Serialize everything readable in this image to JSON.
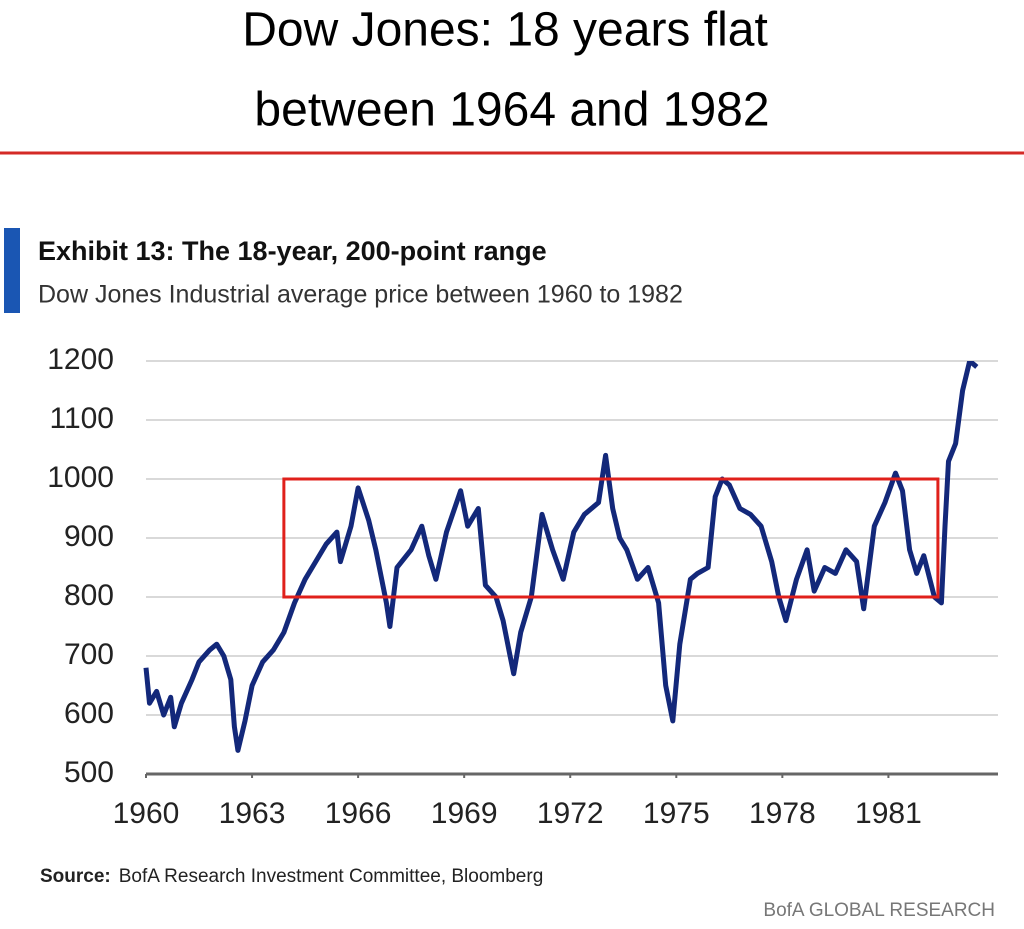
{
  "headline": [
    "Dow Jones: 18 years flat",
    "between 1964 and 1982"
  ],
  "chart_data": {
    "type": "line",
    "title": "Exhibit 13: The 18-year, 200-point range",
    "subtitle": "Dow Jones Industrial average price between 1960 to 1982",
    "x": [
      1960.0,
      1960.1,
      1960.3,
      1960.5,
      1960.7,
      1960.8,
      1961.0,
      1961.3,
      1961.5,
      1961.8,
      1962.0,
      1962.2,
      1962.4,
      1962.5,
      1962.6,
      1962.8,
      1963.0,
      1963.3,
      1963.6,
      1963.9,
      1964.2,
      1964.5,
      1964.8,
      1965.1,
      1965.4,
      1965.5,
      1965.8,
      1966.0,
      1966.3,
      1966.5,
      1966.8,
      1966.9,
      1967.1,
      1967.5,
      1967.8,
      1968.0,
      1968.2,
      1968.5,
      1968.9,
      1969.1,
      1969.4,
      1969.6,
      1969.9,
      1970.1,
      1970.3,
      1970.4,
      1970.6,
      1970.9,
      1971.2,
      1971.5,
      1971.8,
      1972.1,
      1972.4,
      1972.8,
      1973.0,
      1973.2,
      1973.4,
      1973.6,
      1973.9,
      1974.2,
      1974.5,
      1974.7,
      1974.9,
      1975.1,
      1975.4,
      1975.6,
      1975.9,
      1976.1,
      1976.3,
      1976.5,
      1976.8,
      1977.1,
      1977.4,
      1977.7,
      1977.9,
      1978.1,
      1978.4,
      1978.7,
      1978.9,
      1979.2,
      1979.5,
      1979.8,
      1980.1,
      1980.3,
      1980.6,
      1980.9,
      1981.2,
      1981.4,
      1981.6,
      1981.8,
      1982.0,
      1982.3,
      1982.5,
      1982.6,
      1982.7,
      1982.9,
      1983.1,
      1983.3,
      1983.5
    ],
    "series": [
      {
        "name": "Dow Jones Industrial Average",
        "color": "#13287a",
        "values": [
          680,
          620,
          640,
          600,
          630,
          580,
          620,
          660,
          690,
          710,
          720,
          700,
          660,
          580,
          540,
          590,
          650,
          690,
          710,
          740,
          790,
          830,
          860,
          890,
          910,
          860,
          920,
          985,
          930,
          880,
          790,
          750,
          850,
          880,
          920,
          870,
          830,
          910,
          980,
          920,
          950,
          820,
          800,
          760,
          700,
          670,
          740,
          800,
          940,
          880,
          830,
          910,
          940,
          960,
          1040,
          950,
          900,
          880,
          830,
          850,
          790,
          650,
          590,
          720,
          830,
          840,
          850,
          970,
          1000,
          990,
          950,
          940,
          920,
          860,
          800,
          760,
          830,
          880,
          810,
          850,
          840,
          880,
          860,
          780,
          920,
          960,
          1010,
          980,
          880,
          840,
          870,
          800,
          790,
          920,
          1030,
          1060,
          1150,
          1200,
          1190
        ]
      }
    ],
    "xlim": [
      1960,
      1984.1
    ],
    "ylim": [
      500,
      1200
    ],
    "xticks": [
      1960,
      1963,
      1966,
      1969,
      1972,
      1975,
      1978,
      1981
    ],
    "yticks": [
      500,
      600,
      700,
      800,
      900,
      1000,
      1100,
      1200
    ],
    "grid": true,
    "highlight": {
      "x": [
        1963.9,
        1982.4
      ],
      "y": [
        800,
        1000
      ],
      "color": "#e0201b"
    },
    "source_label": "Source:",
    "source": "BofA Research Investment Committee, Bloomberg",
    "credit": "BofA GLOBAL RESEARCH"
  }
}
